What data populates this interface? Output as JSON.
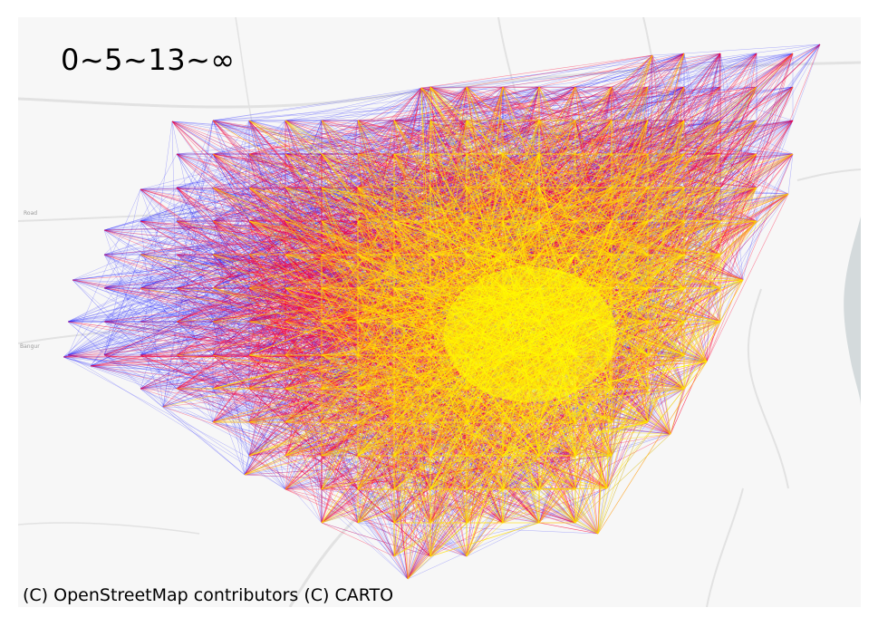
{
  "map": {
    "legend_title": "0~5~13~∞",
    "attribution": "(C) OpenStreetMap contributors (C) CARTO",
    "flow_color_scale": [
      "#1f1fff",
      "#ff0033",
      "#ffdd00",
      "#ffff00"
    ],
    "basemap_colors": {
      "land": "#f7f7f7",
      "water": "#d4dadc",
      "roads": "#e2e2e2"
    },
    "road_labels": [
      "Road",
      "Bangur"
    ]
  }
}
